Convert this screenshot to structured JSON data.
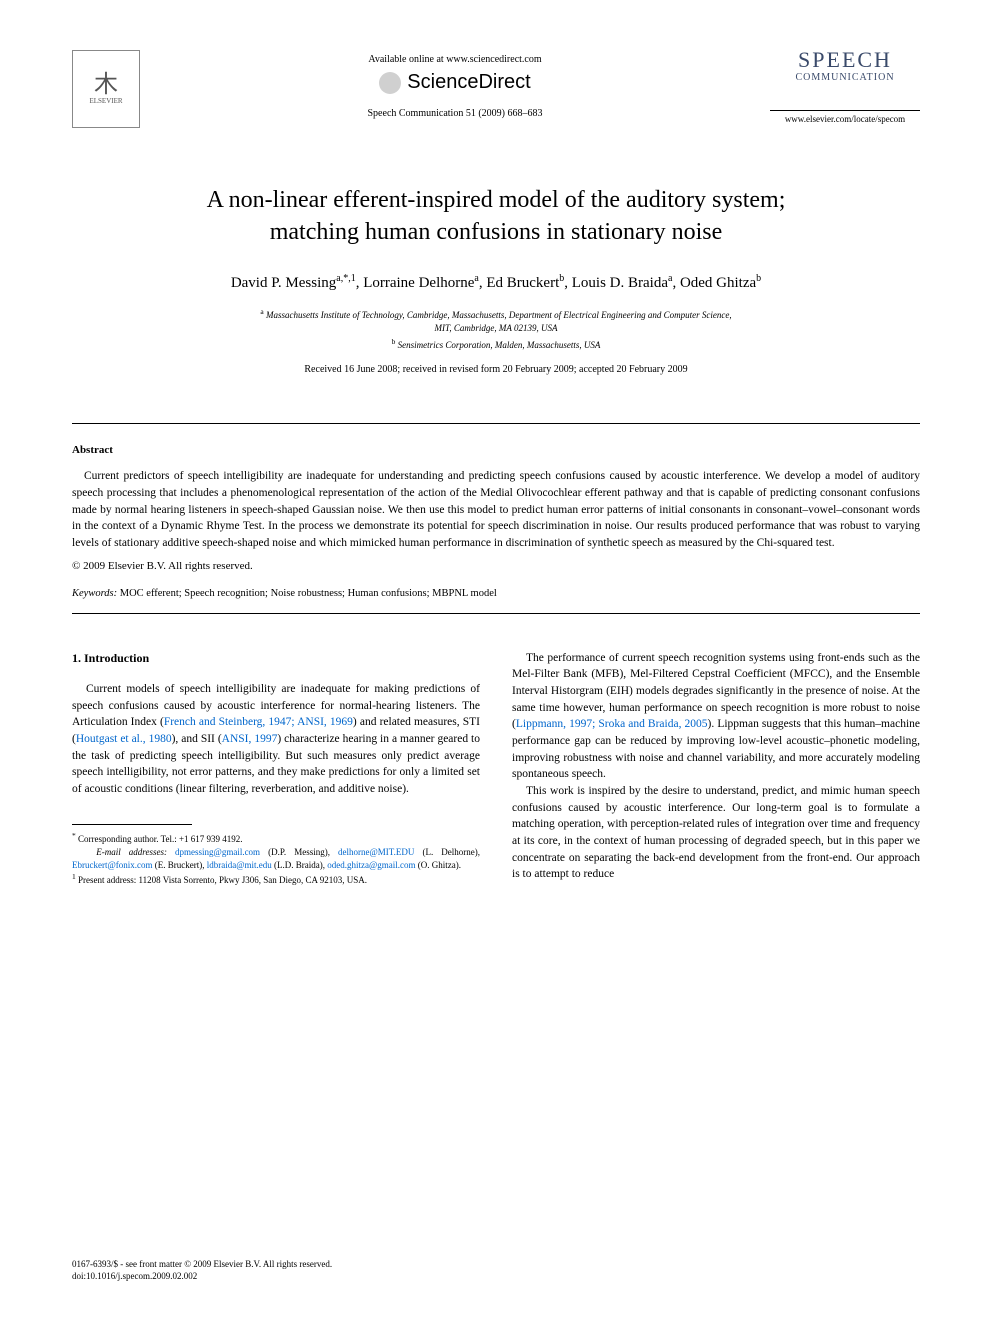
{
  "header": {
    "publisher_name": "ELSEVIER",
    "available_online": "Available online at www.sciencedirect.com",
    "sciencedirect_label": "ScienceDirect",
    "citation": "Speech Communication 51 (2009) 668–683",
    "journal_title_main": "SPEECH",
    "journal_title_sub": "COMMUNICATION",
    "journal_url": "www.elsevier.com/locate/specom"
  },
  "article": {
    "title_line1": "A non-linear efferent-inspired model of the auditory system;",
    "title_line2": "matching human confusions in stationary noise",
    "authors_html": "David P. Messing",
    "authors": [
      {
        "name": "David P. Messing",
        "marks": "a,*,1"
      },
      {
        "name": "Lorraine Delhorne",
        "marks": "a"
      },
      {
        "name": "Ed Bruckert",
        "marks": "b"
      },
      {
        "name": "Louis D. Braida",
        "marks": "a"
      },
      {
        "name": "Oded Ghitza",
        "marks": "b"
      }
    ],
    "affiliations": {
      "a_line1": "Massachusetts Institute of Technology, Cambridge, Massachusetts, Department of Electrical Engineering and Computer Science,",
      "a_line2": "MIT, Cambridge, MA 02139, USA",
      "b": "Sensimetrics Corporation, Malden, Massachusetts, USA"
    },
    "dates": "Received 16 June 2008; received in revised form 20 February 2009; accepted 20 February 2009"
  },
  "abstract": {
    "heading": "Abstract",
    "body": "Current predictors of speech intelligibility are inadequate for understanding and predicting speech confusions caused by acoustic interference. We develop a model of auditory speech processing that includes a phenomenological representation of the action of the Medial Olivocochlear efferent pathway and that is capable of predicting consonant confusions made by normal hearing listeners in speech-shaped Gaussian noise. We then use this model to predict human error patterns of initial consonants in consonant–vowel–consonant words in the context of a Dynamic Rhyme Test. In the process we demonstrate its potential for speech discrimination in noise. Our results produced performance that was robust to varying levels of stationary additive speech-shaped noise and which mimicked human performance in discrimination of synthetic speech as measured by the Chi-squared test.",
    "copyright": "© 2009 Elsevier B.V. All rights reserved.",
    "keywords_label": "Keywords:",
    "keywords_text": " MOC efferent; Speech recognition; Noise robustness; Human confusions; MBPNL model"
  },
  "body": {
    "section_heading": "1. Introduction",
    "col1_p1_pre": "Current models of speech intelligibility are inadequate for making predictions of speech confusions caused by acoustic interference for normal-hearing listeners. The Articulation Index (",
    "col1_ref1": "French and Steinberg, 1947; ANSI, 1969",
    "col1_p1_mid1": ") and related measures, STI (",
    "col1_ref2": "Houtgast et al., 1980",
    "col1_p1_mid2": "), and SII (",
    "col1_ref3": "ANSI, 1997",
    "col1_p1_post": ") characterize hearing in a manner geared to the task of predicting speech intelligibility. But such measures only predict average speech intelligibility, not error patterns, and they make predictions for only a limited set of acoustic conditions (linear filtering, reverberation, and additive noise).",
    "col2_p1_pre": "The performance of current speech recognition systems using front-ends such as the Mel-Filter Bank (MFB), Mel-Filtered Cepstral Coefficient (MFCC), and the Ensemble Interval Historgram (EIH) models degrades significantly in the presence of noise. At the same time however, human performance on speech recognition is more robust to noise (",
    "col2_ref1": "Lippmann, 1997; Sroka and Braida, 2005",
    "col2_p1_post": "). Lippman suggests that this human–machine performance gap can be reduced by improving low-level acoustic–phonetic modeling, improving robustness with noise and channel variability, and more accurately modeling spontaneous speech.",
    "col2_p2": "This work is inspired by the desire to understand, predict, and mimic human speech confusions caused by acoustic interference. Our long-term goal is to formulate a matching operation, with perception-related rules of integration over time and frequency at its core, in the context of human processing of degraded speech, but in this paper we concentrate on separating the back-end development from the front-end. Our approach is to attempt to reduce"
  },
  "footnotes": {
    "corr_label": "Corresponding author. Tel.: +1 617 939 4192.",
    "email_label": "E-mail addresses:",
    "emails": [
      {
        "addr": "dpmessing@gmail.com",
        "who": " (D.P. Messing), "
      },
      {
        "addr": "delhorne@MIT.EDU",
        "who": " (L. Delhorne), "
      },
      {
        "addr": "Ebruckert@fonix.com",
        "who": " (E. Bruckert), "
      },
      {
        "addr": "ldbraida@mit.edu",
        "who": " (L.D. Braida), "
      },
      {
        "addr": "oded.ghitza@gmail.com",
        "who": " (O. Ghitza)."
      }
    ],
    "present_addr": "Present address: 11208 Vista Sorrento, Pkwy J306, San Diego, CA 92103, USA."
  },
  "footer": {
    "line1": "0167-6393/$ - see front matter © 2009 Elsevier B.V. All rights reserved.",
    "line2": "doi:10.1016/j.specom.2009.02.002"
  },
  "colors": {
    "link": "#0066cc",
    "journal_title": "#3a4a6a",
    "text": "#000000",
    "background": "#ffffff"
  }
}
